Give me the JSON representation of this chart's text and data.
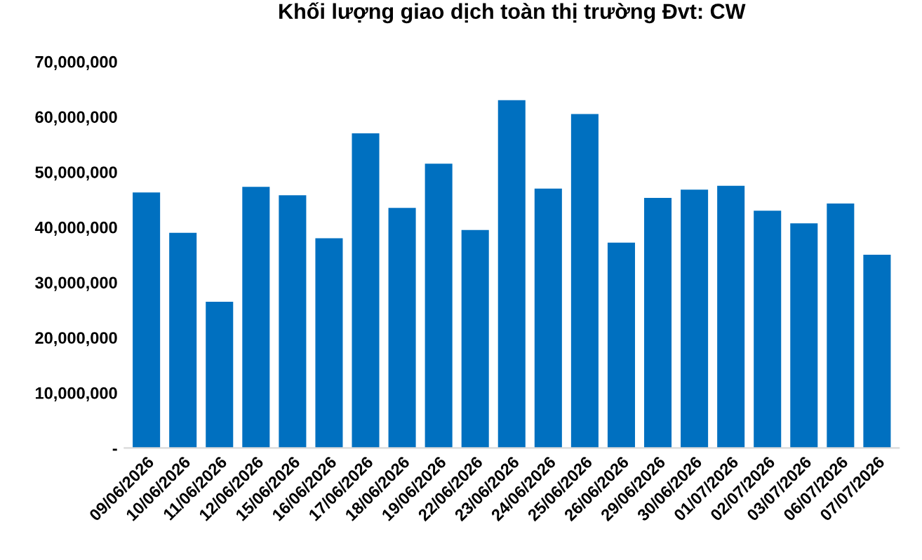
{
  "chart_data": {
    "type": "bar",
    "title": "Khối lượng giao dịch toàn thị trường Đvt: CW",
    "categories": [
      "09/06/2026",
      "10/06/2026",
      "11/06/2026",
      "12/06/2026",
      "15/06/2026",
      "16/06/2026",
      "17/06/2026",
      "18/06/2026",
      "19/06/2026",
      "22/06/2026",
      "23/06/2026",
      "24/06/2026",
      "25/06/2026",
      "26/06/2026",
      "29/06/2026",
      "30/06/2026",
      "01/07/2026",
      "02/07/2026",
      "03/07/2026",
      "06/07/2026",
      "07/07/2026"
    ],
    "values": [
      46300000,
      39000000,
      26500000,
      47300000,
      45800000,
      38000000,
      57000000,
      43500000,
      51500000,
      39500000,
      63000000,
      47000000,
      60500000,
      37200000,
      45300000,
      46800000,
      47500000,
      43000000,
      40700000,
      44300000,
      35000000
    ],
    "color": "#0070c0",
    "ylim": [
      0,
      70000000
    ],
    "yticks": [
      {
        "value": 0,
        "label": "-"
      },
      {
        "value": 10000000,
        "label": "10,000,000"
      },
      {
        "value": 20000000,
        "label": "20,000,000"
      },
      {
        "value": 30000000,
        "label": "30,000,000"
      },
      {
        "value": 40000000,
        "label": "40,000,000"
      },
      {
        "value": 50000000,
        "label": "50,000,000"
      },
      {
        "value": 60000000,
        "label": "60,000,000"
      },
      {
        "value": 70000000,
        "label": "70,000,000"
      }
    ],
    "grid": false,
    "legend": false
  }
}
